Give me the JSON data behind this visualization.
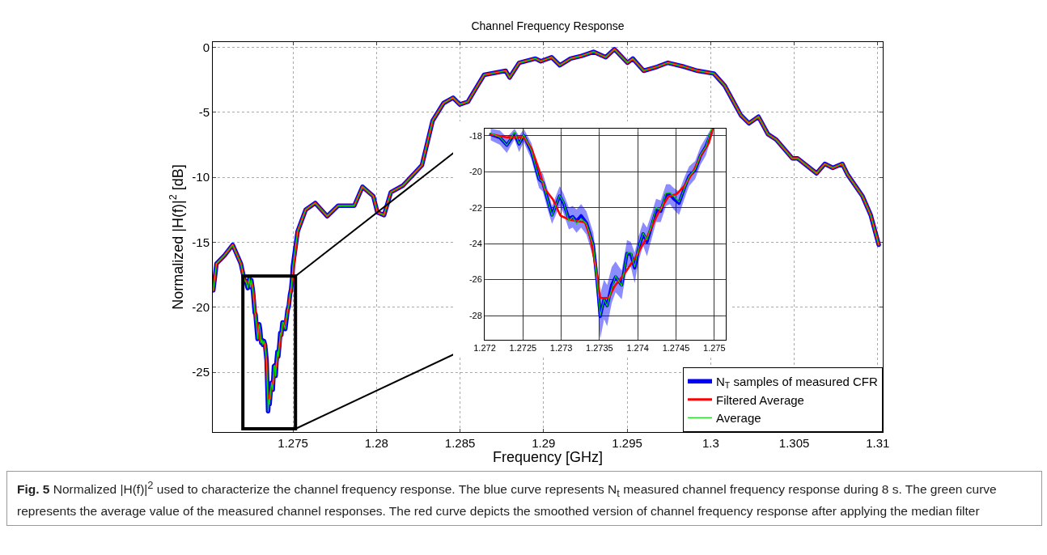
{
  "chart_data": [
    {
      "type": "line",
      "title": "Channel Frequency Response",
      "xlabel": "Frequency [GHz]",
      "ylabel": "Normalized |H(f)|$^{2}$ [dB]",
      "xlim": [
        1.2702,
        1.3103
      ],
      "xticks": [
        1.275,
        1.28,
        1.285,
        1.29,
        1.295,
        1.3,
        1.305,
        1.31
      ],
      "ylim": [
        -29.6,
        0.4
      ],
      "yticks": [
        -25,
        -20,
        -15,
        -10,
        -5,
        0
      ],
      "grid": true,
      "legend": "bottom right",
      "x": [
        1.27023,
        1.27042,
        1.27091,
        1.27139,
        1.27188,
        1.27208,
        1.2722,
        1.27229,
        1.27239,
        1.27245,
        1.27251,
        1.27261,
        1.27271,
        1.27276,
        1.27283,
        1.27288,
        1.27298,
        1.27303,
        1.2731,
        1.27315,
        1.2732,
        1.27326,
        1.27333,
        1.27342,
        1.27347,
        1.27351,
        1.27356,
        1.2736,
        1.27366,
        1.27371,
        1.27379,
        1.27386,
        1.27391,
        1.27396,
        1.27401,
        1.27407,
        1.27412,
        1.27419,
        1.27424,
        1.2743,
        1.27437,
        1.27442,
        1.27447,
        1.27454,
        1.27461,
        1.27467,
        1.27475,
        1.27482,
        1.27489,
        1.27496,
        1.27499,
        1.27528,
        1.27576,
        1.27633,
        1.27705,
        1.2777,
        1.27867,
        1.27916,
        1.27981,
        1.28005,
        1.28045,
        1.28086,
        1.28159,
        1.28272,
        1.28336,
        1.28401,
        1.28458,
        1.28498,
        1.28547,
        1.28595,
        1.28644,
        1.28773,
        1.28797,
        1.28854,
        1.28951,
        1.28983,
        1.29048,
        1.29097,
        1.29162,
        1.29227,
        1.29299,
        1.29372,
        1.29424,
        1.29502,
        1.29534,
        1.29599,
        1.2968,
        1.29744,
        1.29842,
        1.29922,
        1.30019,
        1.30084,
        1.30181,
        1.30229,
        1.30286,
        1.30343,
        1.30392,
        1.30489,
        1.30521,
        1.30634,
        1.30683,
        1.30731,
        1.30788,
        1.3082,
        1.30909,
        1.30958,
        1.31006
      ],
      "series": [
        {
          "name": "N$_{T}$ samples of measured CFR",
          "color": "#0000ff",
          "values": [
            -18.7,
            -16.65,
            -16.0,
            -15.2,
            -16.65,
            -17.85,
            -18.08,
            -18.53,
            -17.77,
            -18.45,
            -17.92,
            -18.83,
            -20.41,
            -20.56,
            -21.68,
            -22.44,
            -21.31,
            -21.68,
            -22.74,
            -22.51,
            -22.89,
            -22.59,
            -22.89,
            -24.09,
            -26.2,
            -28.0,
            -27.1,
            -27.47,
            -26.5,
            -25.8,
            -26.35,
            -24.54,
            -24.47,
            -25.29,
            -24.24,
            -23.41,
            -23.79,
            -22.81,
            -21.98,
            -22.14,
            -21.16,
            -21.16,
            -21.38,
            -21.68,
            -20.93,
            -20.26,
            -19.88,
            -19.05,
            -18.6,
            -17.62,
            -16.86,
            -14.16,
            -12.5,
            -11.98,
            -13.0,
            -12.19,
            -12.19,
            -10.73,
            -11.46,
            -12.7,
            -12.91,
            -11.15,
            -10.63,
            -9.07,
            -5.65,
            -4.3,
            -3.88,
            -4.4,
            -4.19,
            -3.16,
            -2.12,
            -1.81,
            -2.33,
            -1.19,
            -0.87,
            -1.08,
            -0.77,
            -1.39,
            -0.87,
            -0.67,
            -0.35,
            -0.77,
            -0.15,
            -1.19,
            -0.87,
            -1.81,
            -1.5,
            -1.19,
            -1.5,
            -1.81,
            -2.02,
            -2.95,
            -5.23,
            -5.85,
            -5.34,
            -6.69,
            -7.1,
            -8.55,
            -8.55,
            -9.7,
            -8.97,
            -9.28,
            -8.97,
            -9.8,
            -11.46,
            -12.91,
            -15.19
          ]
        },
        {
          "name": "Filtered Average",
          "color": "#ff0000",
          "x": [
            1.27023,
            1.27042,
            1.27091,
            1.27139,
            1.27188,
            1.27208,
            1.27229,
            1.27251,
            1.27261,
            1.27271,
            1.27278,
            1.27289,
            1.27299,
            1.2731,
            1.27331,
            1.27338,
            1.27345,
            1.27351,
            1.27362,
            1.2737,
            1.27384,
            1.27398,
            1.27412,
            1.27426,
            1.2744,
            1.27451,
            1.27461,
            1.27472,
            1.27482,
            1.27493,
            1.27498,
            1.27528,
            1.27576,
            1.27633,
            1.27705,
            1.2777,
            1.27867,
            1.27916,
            1.27981,
            1.28005,
            1.28045,
            1.28086,
            1.28159,
            1.28272,
            1.28336,
            1.28401,
            1.28458,
            1.28498,
            1.28547,
            1.28595,
            1.28644,
            1.28773,
            1.28797,
            1.28854,
            1.28951,
            1.28983,
            1.29048,
            1.29097,
            1.29162,
            1.29227,
            1.29299,
            1.29372,
            1.29424,
            1.29502,
            1.29534,
            1.29599,
            1.2968,
            1.29744,
            1.29842,
            1.29922,
            1.30019,
            1.30084,
            1.30181,
            1.30229,
            1.30286,
            1.30343,
            1.30392,
            1.30489,
            1.30521,
            1.30634,
            1.30683,
            1.30731,
            1.30788,
            1.3082,
            1.30909,
            1.30958,
            1.31006
          ],
          "values": [
            -18.7,
            -16.65,
            -16.0,
            -15.2,
            -16.65,
            -17.92,
            -18.08,
            -18.08,
            -18.68,
            -19.88,
            -20.93,
            -21.53,
            -22.44,
            -22.66,
            -22.81,
            -23.64,
            -25.29,
            -27.02,
            -27.02,
            -26.35,
            -25.59,
            -24.69,
            -23.64,
            -22.36,
            -21.38,
            -21.23,
            -20.78,
            -20.03,
            -19.13,
            -18.38,
            -17.62,
            -14.16,
            -12.5,
            -11.98,
            -13.0,
            -12.19,
            -12.19,
            -10.73,
            -11.46,
            -12.7,
            -12.91,
            -11.15,
            -10.63,
            -9.07,
            -5.65,
            -4.3,
            -3.88,
            -4.4,
            -4.19,
            -3.16,
            -2.12,
            -1.81,
            -2.33,
            -1.19,
            -0.87,
            -1.08,
            -0.77,
            -1.39,
            -0.87,
            -0.67,
            -0.35,
            -0.77,
            -0.15,
            -1.19,
            -0.87,
            -1.81,
            -1.5,
            -1.19,
            -1.5,
            -1.81,
            -2.02,
            -2.95,
            -5.23,
            -5.85,
            -5.34,
            -6.69,
            -7.1,
            -8.55,
            -8.55,
            -9.7,
            -8.97,
            -9.28,
            -8.97,
            -9.8,
            -11.46,
            -12.91,
            -15.19
          ]
        },
        {
          "name": "Average",
          "color": "#00dd00",
          "values": [
            -18.7,
            -16.65,
            -16.0,
            -15.2,
            -16.65,
            -17.85,
            -18.08,
            -18.53,
            -17.77,
            -18.45,
            -17.92,
            -18.83,
            -20.41,
            -20.56,
            -21.68,
            -22.44,
            -21.31,
            -21.68,
            -22.74,
            -22.51,
            -22.89,
            -22.59,
            -22.89,
            -24.09,
            -26.2,
            -28.0,
            -27.1,
            -27.47,
            -26.5,
            -25.8,
            -26.35,
            -24.54,
            -24.47,
            -25.29,
            -24.24,
            -23.41,
            -23.79,
            -22.81,
            -21.98,
            -22.14,
            -21.16,
            -21.16,
            -21.38,
            -21.68,
            -20.93,
            -20.26,
            -19.88,
            -19.05,
            -18.6,
            -17.62,
            -16.86,
            -14.16,
            -12.5,
            -11.98,
            -13.0,
            -12.19,
            -12.19,
            -10.73,
            -11.46,
            -12.7,
            -12.91,
            -11.15,
            -10.63,
            -9.07,
            -5.65,
            -4.3,
            -3.88,
            -4.4,
            -4.19,
            -3.16,
            -2.12,
            -1.81,
            -2.33,
            -1.19,
            -0.87,
            -1.08,
            -0.77,
            -1.39,
            -0.87,
            -0.67,
            -0.35,
            -0.77,
            -0.15,
            -1.19,
            -0.87,
            -1.81,
            -1.5,
            -1.19,
            -1.5,
            -1.81,
            -2.02,
            -2.95,
            -5.23,
            -5.85,
            -5.34,
            -6.69,
            -7.1,
            -8.55,
            -8.55,
            -9.7,
            -8.97,
            -9.28,
            -8.97,
            -9.8,
            -11.46,
            -12.91,
            -15.19
          ]
        }
      ],
      "annotations": [
        "Fig. 5 Normalized |H(f)|$^{2}$ used to characterize the channel frequency response. The blue curve represents N$_{t}$ measured channel frequency response during 8 s. The green curve represents the average value of the measured channel responses. The red curve depicts the smoothed version of channel frequency response after applying the median filter"
      ]
    },
    {
      "type": "line",
      "xlim": [
        1.272,
        1.27515
      ],
      "xticks": [
        1.272,
        1.2725,
        1.273,
        1.2735,
        1.274,
        1.2745,
        1.275
      ],
      "ylim": [
        -29.35,
        -17.6
      ],
      "yticks": [
        -28,
        -26,
        -24,
        -22,
        -20,
        -18
      ],
      "grid": true,
      "x": [
        1.27208,
        1.2722,
        1.27229,
        1.27239,
        1.27245,
        1.27251,
        1.27261,
        1.27271,
        1.27276,
        1.27283,
        1.27288,
        1.27298,
        1.27303,
        1.2731,
        1.27315,
        1.2732,
        1.27326,
        1.27333,
        1.27342,
        1.27347,
        1.27351,
        1.27356,
        1.2736,
        1.27366,
        1.27371,
        1.27379,
        1.27386,
        1.27391,
        1.27396,
        1.27401,
        1.27407,
        1.27412,
        1.27419,
        1.27424,
        1.2743,
        1.27437,
        1.27442,
        1.27447,
        1.27454,
        1.27461,
        1.27467,
        1.27475,
        1.27482,
        1.27489,
        1.27496
      ],
      "series": [
        {
          "color": "#0000ff",
          "values": [
            -17.92,
            -18.1,
            -18.52,
            -17.9,
            -18.45,
            -17.98,
            -18.85,
            -20.4,
            -20.6,
            -21.65,
            -22.4,
            -21.35,
            -21.75,
            -22.6,
            -22.5,
            -22.75,
            -22.45,
            -22.85,
            -24.1,
            -26.1,
            -28.05,
            -27.1,
            -27.45,
            -26.3,
            -25.85,
            -26.3,
            -24.55,
            -24.6,
            -25.35,
            -24.3,
            -23.45,
            -23.9,
            -22.9,
            -22.15,
            -22.2,
            -21.3,
            -21.25,
            -21.5,
            -21.75,
            -20.9,
            -20.25,
            -19.9,
            -19.1,
            -18.6,
            -17.85
          ],
          "lower": [
            -18.25,
            -18.5,
            -18.95,
            -18.2,
            -18.9,
            -18.35,
            -19.3,
            -20.9,
            -21.1,
            -22.2,
            -22.9,
            -21.9,
            -22.3,
            -23.2,
            -23.1,
            -23.4,
            -23.1,
            -23.5,
            -24.8,
            -27.0,
            -29.3,
            -28.2,
            -28.6,
            -27.3,
            -26.7,
            -27.1,
            -25.3,
            -25.3,
            -26.2,
            -25.0,
            -24.1,
            -24.7,
            -23.6,
            -22.8,
            -22.8,
            -21.9,
            -21.8,
            -22.1,
            -22.4,
            -21.5,
            -20.8,
            -20.4,
            -19.6,
            -19.1,
            -18.1
          ],
          "upper": [
            -17.6,
            -17.7,
            -18.1,
            -17.6,
            -18.0,
            -17.6,
            -18.4,
            -19.9,
            -20.1,
            -21.1,
            -21.9,
            -20.8,
            -21.2,
            -22.0,
            -21.9,
            -22.1,
            -21.8,
            -22.2,
            -23.4,
            -25.2,
            -26.8,
            -26.0,
            -26.3,
            -25.3,
            -25.0,
            -25.5,
            -23.8,
            -23.9,
            -24.5,
            -23.6,
            -22.8,
            -23.1,
            -22.2,
            -21.5,
            -21.6,
            -20.7,
            -20.7,
            -20.9,
            -21.1,
            -20.3,
            -19.7,
            -19.4,
            -18.6,
            -18.1,
            -17.6
          ]
        },
        {
          "color": "#ff0000",
          "x": [
            1.27208,
            1.27229,
            1.27251,
            1.27261,
            1.27271,
            1.27278,
            1.27289,
            1.27299,
            1.2731,
            1.27331,
            1.27338,
            1.27345,
            1.27351,
            1.27362,
            1.2737,
            1.27384,
            1.27398,
            1.27412,
            1.27426,
            1.2744,
            1.27451,
            1.27461,
            1.27472,
            1.27482,
            1.27493,
            1.27498
          ],
          "values": [
            -17.92,
            -18.08,
            -18.08,
            -18.68,
            -19.88,
            -20.93,
            -21.53,
            -22.44,
            -22.66,
            -22.81,
            -23.64,
            -25.29,
            -27.02,
            -27.02,
            -26.35,
            -25.59,
            -24.69,
            -23.64,
            -22.36,
            -21.38,
            -21.23,
            -20.78,
            -20.03,
            -19.13,
            -18.38,
            -17.62
          ]
        },
        {
          "color": "#00dd00",
          "values": [
            -17.85,
            -18.08,
            -18.53,
            -17.77,
            -18.45,
            -17.92,
            -18.83,
            -20.41,
            -20.56,
            -21.68,
            -22.44,
            -21.31,
            -21.68,
            -22.74,
            -22.51,
            -22.89,
            -22.59,
            -22.89,
            -24.09,
            -26.2,
            -28.0,
            -27.1,
            -27.47,
            -26.5,
            -25.8,
            -26.35,
            -24.54,
            -24.47,
            -25.29,
            -24.24,
            -23.41,
            -23.79,
            -22.81,
            -21.98,
            -22.14,
            -21.16,
            -21.16,
            -21.38,
            -21.68,
            -20.93,
            -20.26,
            -19.88,
            -19.05,
            -18.6,
            -17.62
          ]
        }
      ]
    }
  ]
}
